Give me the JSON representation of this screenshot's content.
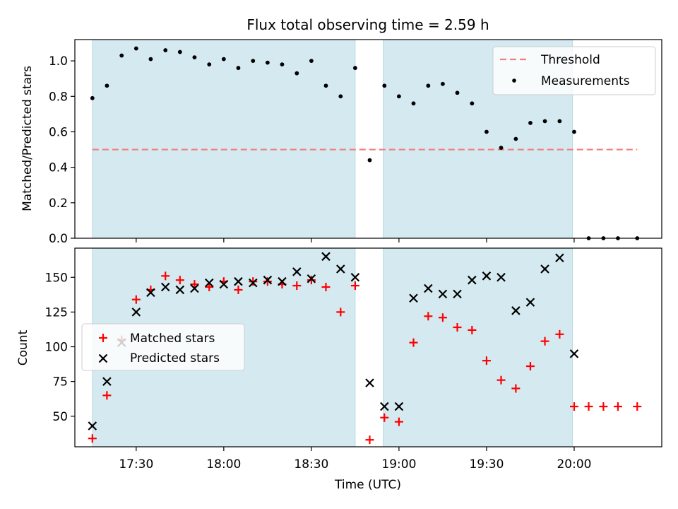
{
  "chart_data": {
    "type": "scatter",
    "title": "Flux total observing time = 2.59 h",
    "xlabel": "Time (UTC)",
    "x_ticks": [
      "17:30",
      "18:00",
      "18:30",
      "19:00",
      "19:30",
      "20:00"
    ],
    "x_tick_hours": [
      17.5,
      18.0,
      18.5,
      19.0,
      19.5,
      20.0
    ],
    "xlim": [
      "17:09",
      "20:30"
    ],
    "xlim_hours": [
      17.15,
      20.5
    ],
    "observing_windows": [
      {
        "start": "17:15",
        "end": "18:45",
        "start_h": 17.25,
        "end_h": 18.75
      },
      {
        "start": "18:55",
        "end": "19:59",
        "start_h": 18.91,
        "end_h": 19.99
      }
    ],
    "window_color": "#d4eaf0",
    "top": {
      "ylabel": "Matched/Predicted stars",
      "ylim": [
        0,
        1.12
      ],
      "y_ticks": [
        "0.0",
        "0.2",
        "0.4",
        "0.6",
        "0.8",
        "1.0"
      ],
      "y_tick_values": [
        0.0,
        0.2,
        0.4,
        0.6,
        0.8,
        1.0
      ],
      "threshold": {
        "name": "Threshold",
        "value": 0.5,
        "x_start_h": 17.25,
        "x_end_h": 20.36,
        "color": "#f28080"
      },
      "series": [
        {
          "name": "Measurements",
          "color": "#000000",
          "x_hours": [
            17.25,
            17.333,
            17.417,
            17.5,
            17.583,
            17.667,
            17.75,
            17.833,
            17.917,
            18.0,
            18.083,
            18.167,
            18.25,
            18.333,
            18.417,
            18.5,
            18.583,
            18.667,
            18.75,
            18.833,
            18.917,
            19.0,
            19.083,
            19.167,
            19.25,
            19.333,
            19.417,
            19.5,
            19.583,
            19.667,
            19.75,
            19.833,
            19.917,
            20.0,
            20.083,
            20.167,
            20.25,
            20.36
          ],
          "values": [
            0.79,
            0.86,
            1.03,
            1.07,
            1.01,
            1.06,
            1.05,
            1.02,
            0.98,
            1.01,
            0.96,
            1.0,
            0.99,
            0.98,
            0.93,
            1.0,
            0.86,
            0.8,
            0.96,
            0.44,
            0.86,
            0.8,
            0.76,
            0.86,
            0.87,
            0.82,
            0.76,
            0.6,
            0.51,
            0.56,
            0.65,
            0.66,
            0.66,
            0.6,
            0.0,
            0.0,
            0.0,
            0.0
          ]
        }
      ],
      "legend": {
        "position": "top-right",
        "entries": [
          "Threshold",
          "Measurements"
        ]
      }
    },
    "bottom": {
      "ylabel": "Count",
      "ylim": [
        28,
        171
      ],
      "y_ticks": [
        "50",
        "75",
        "100",
        "125",
        "150"
      ],
      "y_tick_values": [
        50,
        75,
        100,
        125,
        150
      ],
      "series": [
        {
          "name": "Matched stars",
          "marker": "plus",
          "color": "#ff0000",
          "x_hours": [
            17.25,
            17.333,
            17.417,
            17.5,
            17.583,
            17.667,
            17.75,
            17.833,
            17.917,
            18.0,
            18.083,
            18.167,
            18.25,
            18.333,
            18.417,
            18.5,
            18.583,
            18.667,
            18.75,
            18.833,
            18.917,
            19.0,
            19.083,
            19.167,
            19.25,
            19.333,
            19.417,
            19.5,
            19.583,
            19.667,
            19.75,
            19.833,
            19.917,
            20.0,
            20.083,
            20.167,
            20.25,
            20.36
          ],
          "values": [
            34,
            65,
            105,
            134,
            141,
            151,
            148,
            145,
            143,
            147,
            141,
            147,
            147,
            145,
            144,
            148,
            143,
            125,
            144,
            33,
            49,
            46,
            103,
            122,
            121,
            114,
            112,
            90,
            76,
            70,
            86,
            104,
            109,
            57,
            57,
            57,
            57,
            57
          ]
        },
        {
          "name": "Predicted stars",
          "marker": "x",
          "color": "#000000",
          "x_hours": [
            17.25,
            17.333,
            17.417,
            17.5,
            17.583,
            17.667,
            17.75,
            17.833,
            17.917,
            18.0,
            18.083,
            18.167,
            18.25,
            18.333,
            18.417,
            18.5,
            18.583,
            18.667,
            18.75,
            18.833,
            18.917,
            19.0,
            19.083,
            19.167,
            19.25,
            19.333,
            19.417,
            19.5,
            19.583,
            19.667,
            19.75,
            19.833,
            19.917,
            20.0
          ],
          "values": [
            43,
            75,
            103,
            125,
            139,
            143,
            141,
            142,
            146,
            145,
            147,
            146,
            148,
            147,
            154,
            149,
            165,
            156,
            150,
            74,
            57,
            57,
            135,
            142,
            138,
            138,
            148,
            151,
            150,
            126,
            132,
            156,
            164,
            95
          ]
        }
      ],
      "legend": {
        "position": "center-left",
        "entries": [
          "Matched stars",
          "Predicted stars"
        ]
      }
    }
  }
}
